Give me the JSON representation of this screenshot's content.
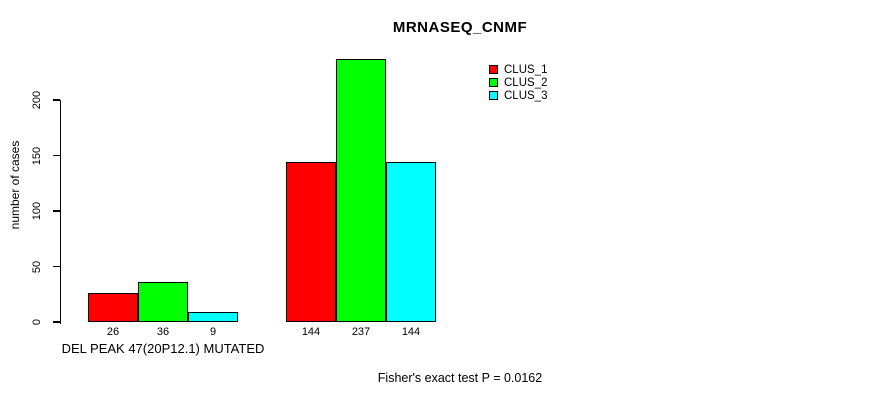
{
  "chart_data": {
    "type": "bar",
    "title": "MRNASEQ_CNMF",
    "ylabel": "number of cases",
    "xlabel": "",
    "categories": [
      "DEL PEAK 47(20P12.1) MUTATED",
      ""
    ],
    "series": [
      {
        "name": "CLUS_1",
        "color": "#ff0000",
        "values": [
          26,
          144
        ]
      },
      {
        "name": "CLUS_2",
        "color": "#00ff00",
        "values": [
          36,
          237
        ]
      },
      {
        "name": "CLUS_3",
        "color": "#00ffff",
        "values": [
          9,
          144
        ]
      }
    ],
    "bar_value_labels": [
      [
        26,
        36,
        9
      ],
      [
        144,
        237,
        144
      ]
    ],
    "yticks": [
      0,
      50,
      100,
      150,
      200
    ],
    "ylim": [
      0,
      240
    ],
    "grid": false,
    "legend_position": "top-right",
    "legend_border": false,
    "footnote": "Fisher's exact test P = 0.0162",
    "background": "#ffffff",
    "bar_border_color": "#000000"
  }
}
